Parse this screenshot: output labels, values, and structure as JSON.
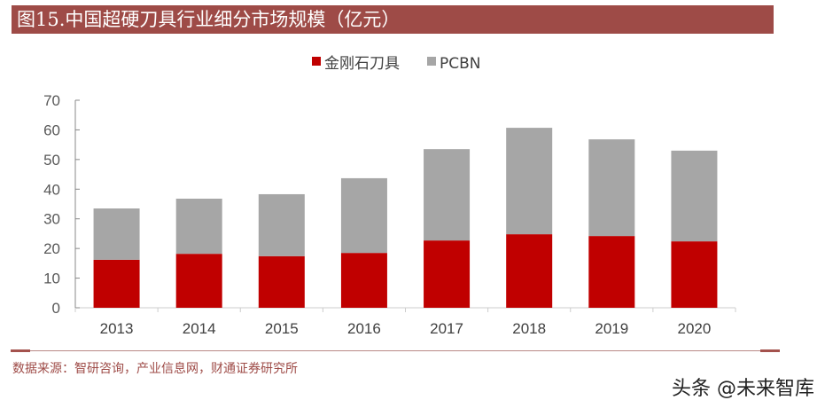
{
  "header": {
    "title": "图15.中国超硬刀具行业细分市场规模（亿元）"
  },
  "footer": {
    "source": "数据来源：智研咨询，产业信息网，财通证券研究所",
    "watermark": "头条 @未来智库"
  },
  "colors": {
    "title_bar": "#9e4b47",
    "diamond": "#c00000",
    "pcbn": "#a6a6a6"
  },
  "chart_data": {
    "type": "bar",
    "stacked": true,
    "categories": [
      "2013",
      "2014",
      "2015",
      "2016",
      "2017",
      "2018",
      "2019",
      "2020"
    ],
    "series": [
      {
        "name": "金刚石刀具",
        "color": "#c00000",
        "values": [
          16.2,
          18.2,
          17.4,
          18.5,
          22.7,
          24.8,
          24.2,
          22.4
        ]
      },
      {
        "name": "PCBN",
        "color": "#a6a6a6",
        "values": [
          17.3,
          18.6,
          20.9,
          25.2,
          30.8,
          35.9,
          32.6,
          30.6
        ]
      }
    ],
    "ylim": [
      0,
      70
    ],
    "yticks": [
      0,
      10,
      20,
      30,
      40,
      50,
      60,
      70
    ],
    "legend": "top",
    "grid": false
  }
}
